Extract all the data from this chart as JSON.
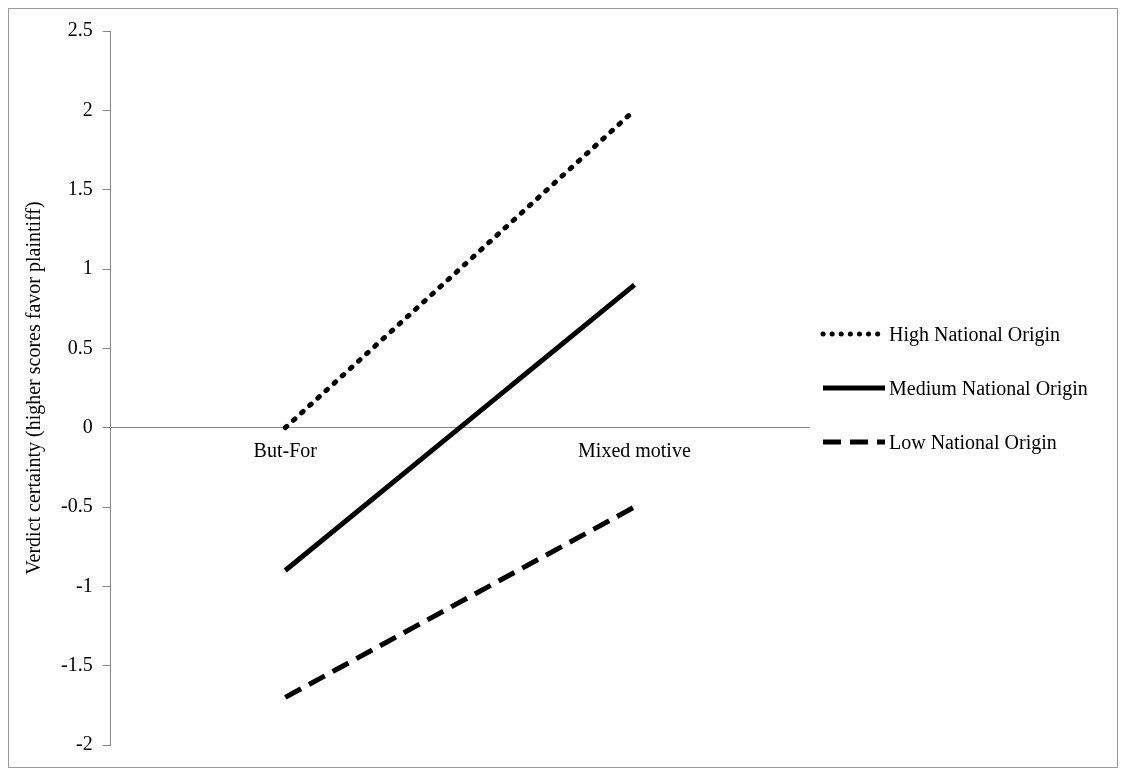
{
  "chart_data": {
    "type": "line",
    "ylabel": "Verdict certainty (higher scores favor plaintiff)",
    "categories": [
      "But-For",
      "Mixed motive"
    ],
    "series": [
      {
        "name": "High National Origin",
        "color": "#000000",
        "values": [
          0,
          2
        ],
        "line_style": "dotted"
      },
      {
        "name": "Medium National Origin",
        "color": "#000000",
        "values": [
          -0.9,
          0.9
        ],
        "line_style": "solid"
      },
      {
        "name": "Low National Origin",
        "color": "#000000",
        "values": [
          -1.7,
          -0.5
        ],
        "line_style": "dashed"
      }
    ],
    "ylim": [
      -2,
      2.5
    ],
    "yticks": [
      -2,
      -1.5,
      -1,
      -0.5,
      0,
      0.5,
      1,
      1.5,
      2,
      2.5
    ],
    "grid": false,
    "legend": "right",
    "marker": "none"
  }
}
